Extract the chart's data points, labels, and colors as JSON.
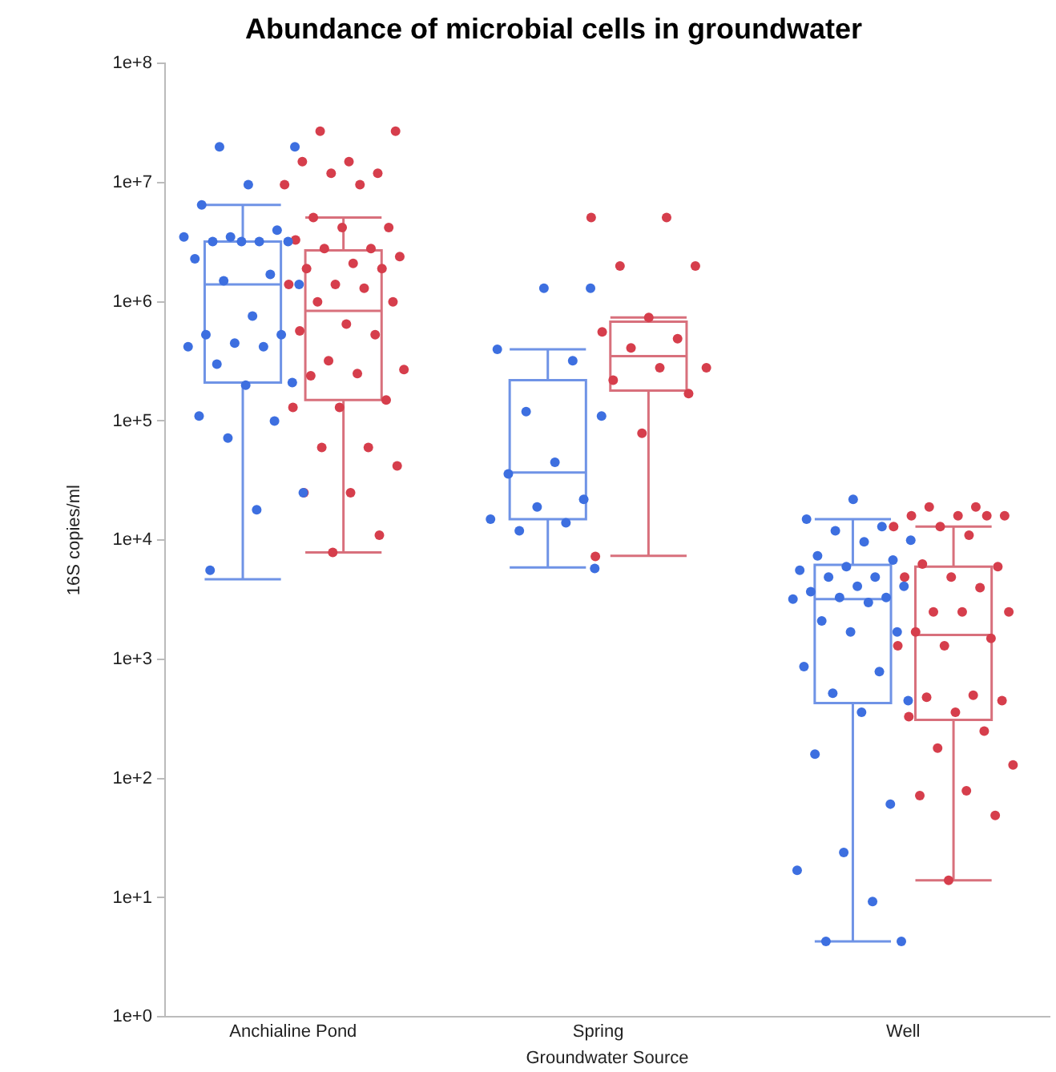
{
  "chart_data": {
    "type": "box",
    "title": "Abundance of microbial cells in groundwater",
    "xlabel": "Groundwater Source",
    "ylabel": "16S copies/ml",
    "categories": [
      "Anchialine Pond",
      "Spring",
      "Well"
    ],
    "log": true,
    "grid": false,
    "marker": "circle",
    "ylim": [
      1,
      100000000
    ],
    "yticks": [
      {
        "value": 1,
        "label": "1e+0"
      },
      {
        "value": 10,
        "label": "1e+1"
      },
      {
        "value": 100,
        "label": "1e+2"
      },
      {
        "value": 1000,
        "label": "1e+3"
      },
      {
        "value": 10000,
        "label": "1e+4"
      },
      {
        "value": 100000,
        "label": "1e+5"
      },
      {
        "value": 1000000,
        "label": "1e+6"
      },
      {
        "value": 10000000,
        "label": "1e+7"
      },
      {
        "value": 100000000,
        "label": "1e+8"
      }
    ],
    "series": [
      {
        "type": "box",
        "color": "#6f93e6",
        "boxes": [
          {
            "low": 4700,
            "q1": 210000,
            "median": 1400000,
            "q3": 3200000,
            "high": 6500000
          },
          {
            "low": 5900,
            "q1": 15000,
            "median": 37000,
            "q3": 220000,
            "high": 400000
          },
          {
            "low": 4.3,
            "q1": 430,
            "median": 3200,
            "q3": 6200,
            "high": 15000
          }
        ]
      },
      {
        "type": "box",
        "color": "#d8707c",
        "boxes": [
          {
            "low": 7900,
            "q1": 150000,
            "median": 840000,
            "q3": 2700000,
            "high": 5100000
          },
          {
            "low": 7400,
            "q1": 180000,
            "median": 350000,
            "q3": 680000,
            "high": 740000
          },
          {
            "low": 14,
            "q1": 310,
            "median": 1600,
            "q3": 6000,
            "high": 13000
          }
        ]
      },
      {
        "type": "scatter",
        "color": "#3d6fe0",
        "x": [
          "Anchialine Pond",
          "Anchialine Pond",
          "Anchialine Pond",
          "Anchialine Pond",
          "Anchialine Pond",
          "Anchialine Pond",
          "Anchialine Pond",
          "Anchialine Pond",
          "Anchialine Pond",
          "Anchialine Pond",
          "Anchialine Pond",
          "Anchialine Pond",
          "Anchialine Pond",
          "Anchialine Pond",
          "Anchialine Pond",
          "Anchialine Pond",
          "Anchialine Pond",
          "Anchialine Pond",
          "Anchialine Pond",
          "Anchialine Pond",
          "Anchialine Pond",
          "Anchialine Pond",
          "Anchialine Pond",
          "Anchialine Pond",
          "Anchialine Pond",
          "Anchialine Pond",
          "Anchialine Pond",
          "Anchialine Pond",
          "Anchialine Pond",
          "Anchialine Pond",
          "Spring",
          "Spring",
          "Spring",
          "Spring",
          "Spring",
          "Spring",
          "Spring",
          "Spring",
          "Spring",
          "Spring",
          "Spring",
          "Spring",
          "Spring",
          "Spring",
          "Well",
          "Well",
          "Well",
          "Well",
          "Well",
          "Well",
          "Well",
          "Well",
          "Well",
          "Well",
          "Well",
          "Well",
          "Well",
          "Well",
          "Well",
          "Well",
          "Well",
          "Well",
          "Well",
          "Well",
          "Well",
          "Well",
          "Well",
          "Well",
          "Well",
          "Well",
          "Well",
          "Well",
          "Well",
          "Well",
          "Well",
          "Well",
          "Well",
          "Well"
        ],
        "values": [
          20000000,
          20000000,
          9600000,
          6500000,
          4000000,
          3500000,
          3500000,
          3200000,
          3200000,
          3200000,
          3200000,
          2300000,
          1700000,
          1500000,
          1400000,
          760000,
          530000,
          530000,
          450000,
          420000,
          420000,
          300000,
          210000,
          200000,
          110000,
          100000,
          72000,
          25000,
          18000,
          5600,
          1300000,
          1300000,
          400000,
          320000,
          120000,
          110000,
          45000,
          36000,
          22000,
          19000,
          15000,
          14000,
          12000,
          5800,
          22000,
          15000,
          13000,
          12000,
          10000,
          9700,
          7400,
          6800,
          6000,
          5600,
          4900,
          4900,
          4100,
          4100,
          3700,
          3300,
          3300,
          3200,
          3000,
          2100,
          1700,
          1700,
          870,
          790,
          520,
          450,
          360,
          160,
          61,
          24,
          17,
          9.3,
          4.3,
          4.3
        ]
      },
      {
        "type": "scatter",
        "color": "#d63e4c",
        "x": [
          "Anchialine Pond",
          "Anchialine Pond",
          "Anchialine Pond",
          "Anchialine Pond",
          "Anchialine Pond",
          "Anchialine Pond",
          "Anchialine Pond",
          "Anchialine Pond",
          "Anchialine Pond",
          "Anchialine Pond",
          "Anchialine Pond",
          "Anchialine Pond",
          "Anchialine Pond",
          "Anchialine Pond",
          "Anchialine Pond",
          "Anchialine Pond",
          "Anchialine Pond",
          "Anchialine Pond",
          "Anchialine Pond",
          "Anchialine Pond",
          "Anchialine Pond",
          "Anchialine Pond",
          "Anchialine Pond",
          "Anchialine Pond",
          "Anchialine Pond",
          "Anchialine Pond",
          "Anchialine Pond",
          "Anchialine Pond",
          "Anchialine Pond",
          "Anchialine Pond",
          "Anchialine Pond",
          "Anchialine Pond",
          "Anchialine Pond",
          "Anchialine Pond",
          "Anchialine Pond",
          "Anchialine Pond",
          "Anchialine Pond",
          "Anchialine Pond",
          "Anchialine Pond",
          "Anchialine Pond",
          "Spring",
          "Spring",
          "Spring",
          "Spring",
          "Spring",
          "Spring",
          "Spring",
          "Spring",
          "Spring",
          "Spring",
          "Spring",
          "Spring",
          "Spring",
          "Spring",
          "Well",
          "Well",
          "Well",
          "Well",
          "Well",
          "Well",
          "Well",
          "Well",
          "Well",
          "Well",
          "Well",
          "Well",
          "Well",
          "Well",
          "Well",
          "Well",
          "Well",
          "Well",
          "Well",
          "Well",
          "Well",
          "Well",
          "Well",
          "Well",
          "Well",
          "Well",
          "Well",
          "Well",
          "Well",
          "Well",
          "Well",
          "Well",
          "Well"
        ],
        "values": [
          27000000,
          27000000,
          15000000,
          15000000,
          12000000,
          12000000,
          9600000,
          9600000,
          5100000,
          4200000,
          4200000,
          3300000,
          2800000,
          2800000,
          2400000,
          2100000,
          1900000,
          1900000,
          1400000,
          1400000,
          1300000,
          1000000,
          1000000,
          650000,
          570000,
          530000,
          320000,
          270000,
          250000,
          240000,
          150000,
          130000,
          130000,
          60000,
          60000,
          42000,
          25000,
          25000,
          11000,
          7900,
          5100000,
          5100000,
          2000000,
          2000000,
          740000,
          560000,
          490000,
          410000,
          280000,
          280000,
          220000,
          170000,
          79000,
          7300,
          19000,
          19000,
          16000,
          16000,
          16000,
          16000,
          13000,
          13000,
          11000,
          6300,
          6000,
          4900,
          4900,
          4000,
          2500,
          2500,
          2500,
          1700,
          1500,
          1300,
          1300,
          500,
          480,
          450,
          360,
          330,
          250,
          180,
          130,
          79,
          72,
          49,
          14
        ]
      }
    ]
  }
}
